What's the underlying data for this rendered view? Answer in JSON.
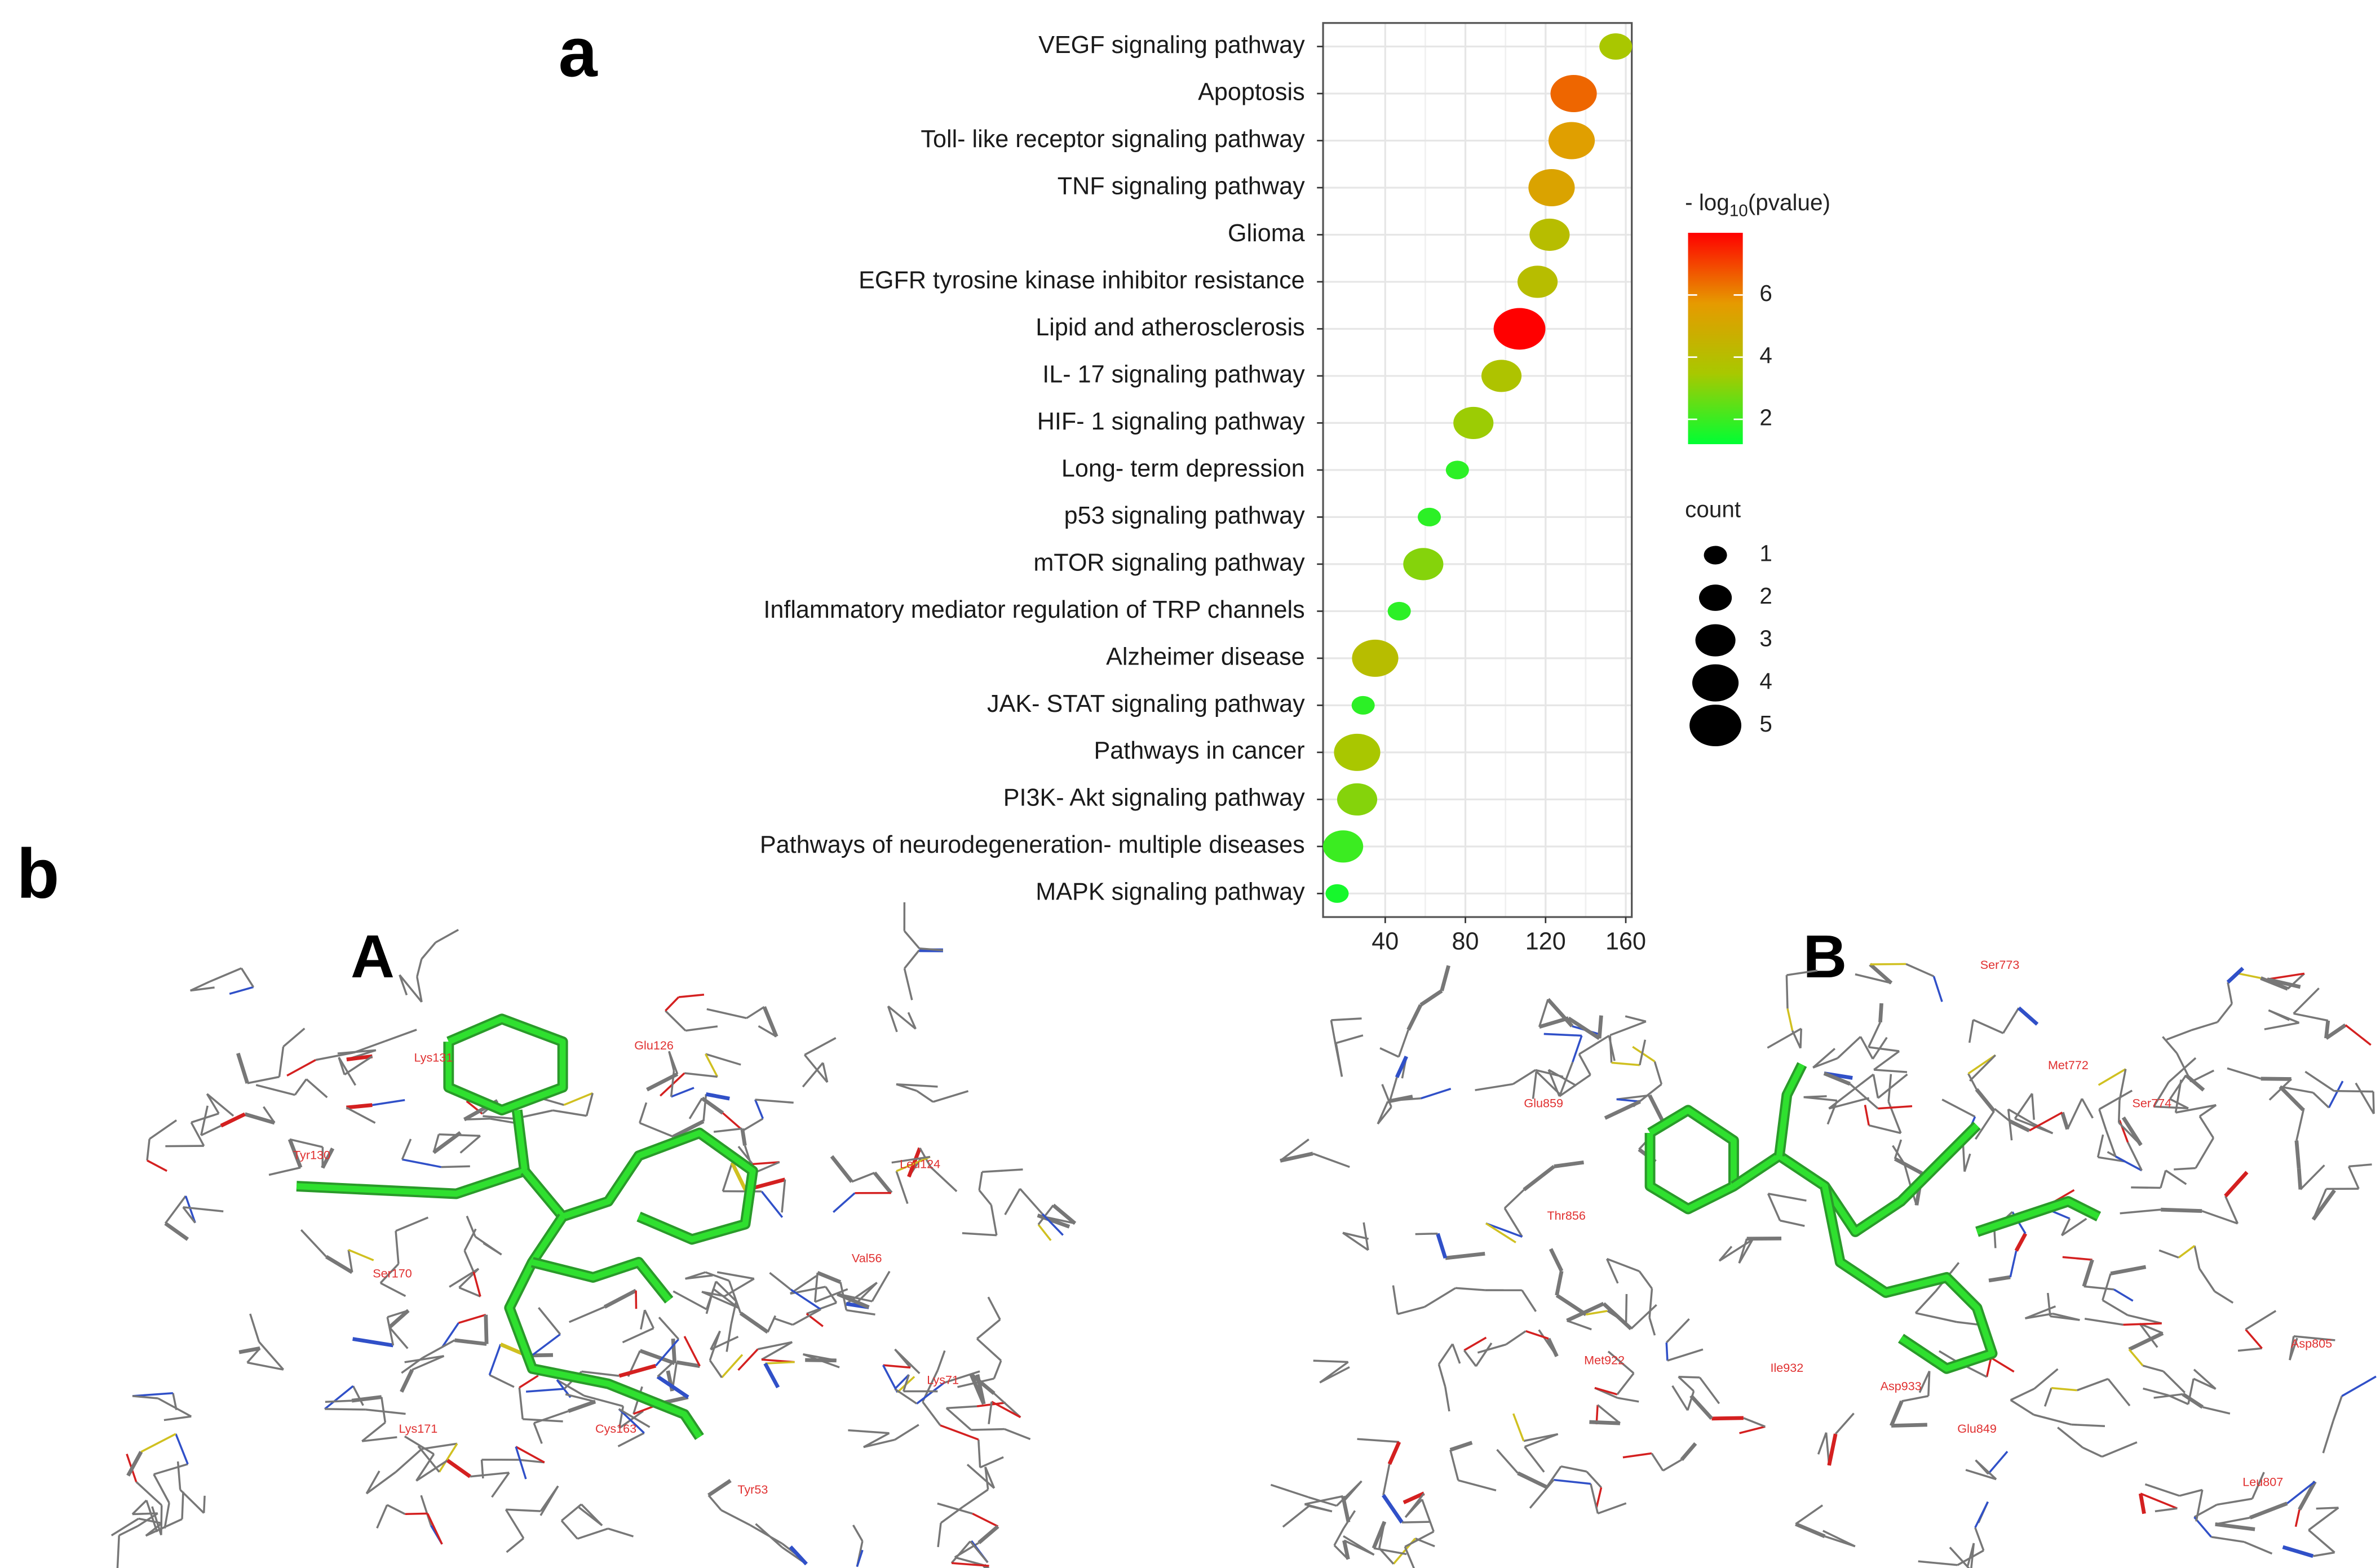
{
  "chart_data": {
    "type": "bubble",
    "panel_label": "a",
    "categories": [
      "VEGF signaling pathway",
      "Apoptosis",
      "Toll- like receptor signaling pathway",
      "TNF signaling pathway",
      "Glioma",
      "EGFR tyrosine kinase inhibitor resistance",
      "Lipid and atherosclerosis",
      "IL- 17 signaling pathway",
      "HIF- 1 signaling pathway",
      "Long- term depression",
      "p53 signaling pathway",
      "mTOR signaling pathway",
      "Inflammatory mediator regulation of TRP channels",
      "Alzheimer disease",
      "JAK- STAT signaling pathway",
      "Pathways in cancer",
      "PI3K- Akt signaling pathway",
      "Pathways of neurodegeneration- multiple diseases",
      "MAPK signaling pathway"
    ],
    "values": [
      155,
      134,
      133,
      123,
      122,
      116,
      107,
      98,
      84,
      76,
      62,
      59,
      47,
      35,
      29,
      26,
      26,
      19,
      16
    ],
    "color_values": [
      3.5,
      6.5,
      5.5,
      5.3,
      4,
      4,
      8,
      3.7,
      3.3,
      1.8,
      1.8,
      3,
      1.8,
      4,
      1.8,
      3.5,
      3,
      2,
      1.5
    ],
    "sizes": [
      2,
      4,
      4,
      4,
      3,
      3,
      5,
      3,
      3,
      1,
      1,
      3,
      1,
      4,
      1,
      4,
      3,
      3,
      1
    ],
    "xlim": [
      9,
      163
    ],
    "xticks": [
      40,
      80,
      120,
      160
    ],
    "grid": true,
    "colorbar": {
      "title": [
        "- log",
        "10",
        "(pvalue)"
      ],
      "lim": [
        1.2,
        8
      ],
      "ticks": [
        2,
        4,
        6
      ],
      "colors": [
        "#00ff33",
        "#a8c800",
        "#e69a00",
        "#ff0000"
      ]
    },
    "size_legend": {
      "title": "count",
      "values": [
        1,
        2,
        3,
        4,
        5
      ],
      "color": "#000000"
    }
  },
  "panel_b": {
    "label": "b",
    "panels": [
      {
        "label": "A",
        "residues": [
          "Tyr130",
          "Ser170",
          "Lys171",
          "Cys163",
          "Glu126",
          "Val56",
          "Lys71",
          "Leu124",
          "Lys131",
          "Tyr53"
        ]
      },
      {
        "label": "B",
        "residues": [
          "Ser773",
          "Met772",
          "Ser774",
          "Glu859",
          "Thr856",
          "Met922",
          "Ile932",
          "Asp933",
          "Asp805",
          "Leu807",
          "Glu849"
        ]
      }
    ]
  }
}
